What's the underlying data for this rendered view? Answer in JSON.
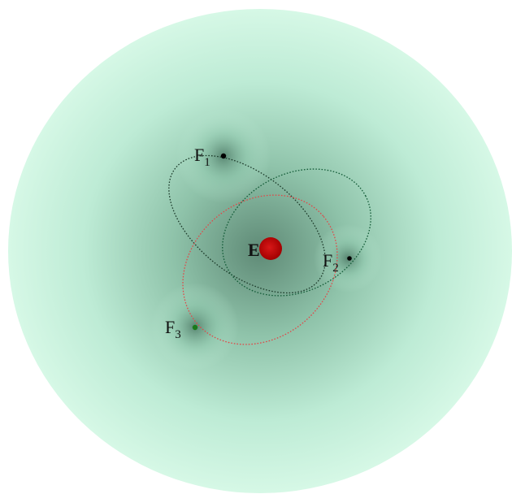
{
  "colors": {
    "sphere_edge": "#d6f8e6",
    "sphere_mid": "#aee0c8",
    "sphere_core": "#5f8a76",
    "central_body": "#c40000",
    "orbit_f1": "#1c3a2a",
    "orbit_f2": "#145c38",
    "orbit_f3": "#e04848",
    "point_f1": "#000000",
    "point_f2": "#000000",
    "point_f3": "#1a7a1a"
  },
  "central": {
    "label": "E"
  },
  "foci": [
    {
      "name": "F",
      "sub": "1"
    },
    {
      "name": "F",
      "sub": "2"
    },
    {
      "name": "F",
      "sub": "3"
    }
  ]
}
